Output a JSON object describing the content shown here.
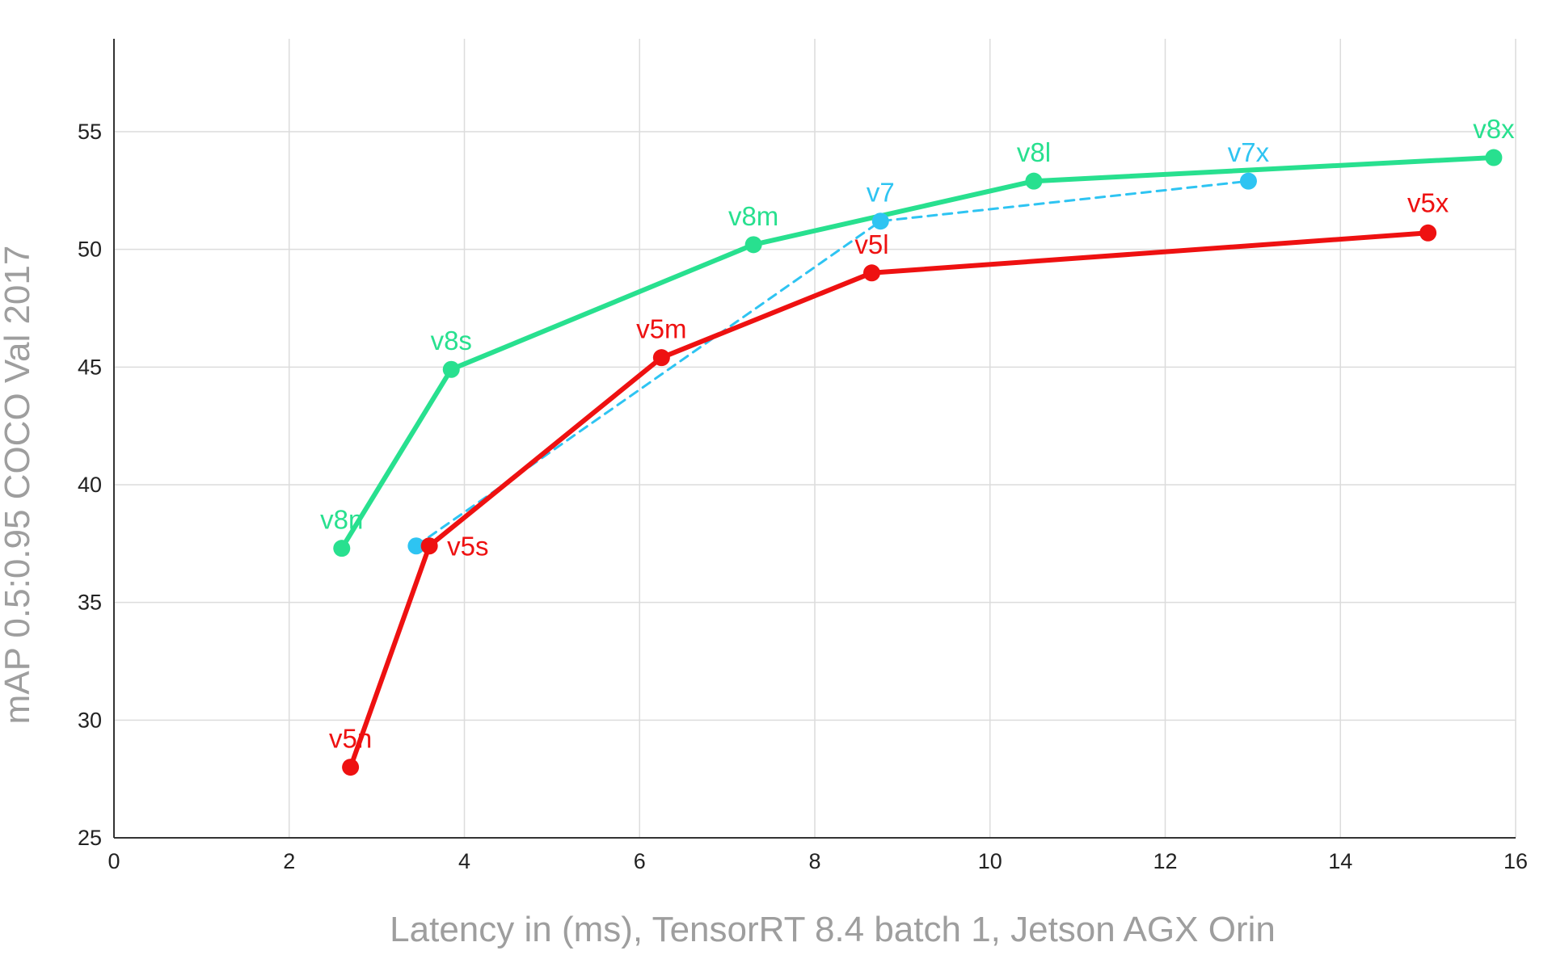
{
  "chart_data": {
    "type": "line",
    "title": "",
    "xlabel": "Latency in (ms), TensorRT 8.4 batch 1, Jetson AGX Orin",
    "ylabel": "mAP 0.5:0.95 COCO Val 2017",
    "xlim": [
      0,
      16
    ],
    "ylim": [
      25,
      59
    ],
    "x_ticks": [
      0,
      2,
      4,
      6,
      8,
      10,
      12,
      14,
      16
    ],
    "y_ticks": [
      25,
      30,
      35,
      40,
      45,
      50,
      55
    ],
    "grid": true,
    "legend": "none",
    "series": [
      {
        "color": "#28e08f",
        "style": "solid",
        "points": [
          {
            "label": "v8n",
            "x": 2.6,
            "y": 37.3
          },
          {
            "label": "v8s",
            "x": 3.85,
            "y": 44.9
          },
          {
            "label": "v8m",
            "x": 7.3,
            "y": 50.2
          },
          {
            "label": "v8l",
            "x": 10.5,
            "y": 52.9
          },
          {
            "label": "v8x",
            "x": 15.75,
            "y": 53.9
          }
        ]
      },
      {
        "color": "#2ec4f2",
        "style": "dashed",
        "points": [
          {
            "label": "",
            "x": 3.45,
            "y": 37.4
          },
          {
            "label": "v7",
            "x": 8.75,
            "y": 51.2
          },
          {
            "label": "v7x",
            "x": 12.95,
            "y": 52.9
          }
        ]
      },
      {
        "color": "#ee1111",
        "style": "solid",
        "points": [
          {
            "label": "v5n",
            "x": 2.7,
            "y": 28.0
          },
          {
            "label": "v5s",
            "x": 3.6,
            "y": 37.4
          },
          {
            "label": "v5m",
            "x": 6.25,
            "y": 45.4
          },
          {
            "label": "v5l",
            "x": 8.65,
            "y": 49.0
          },
          {
            "label": "v5x",
            "x": 15.0,
            "y": 50.7
          }
        ]
      }
    ]
  }
}
